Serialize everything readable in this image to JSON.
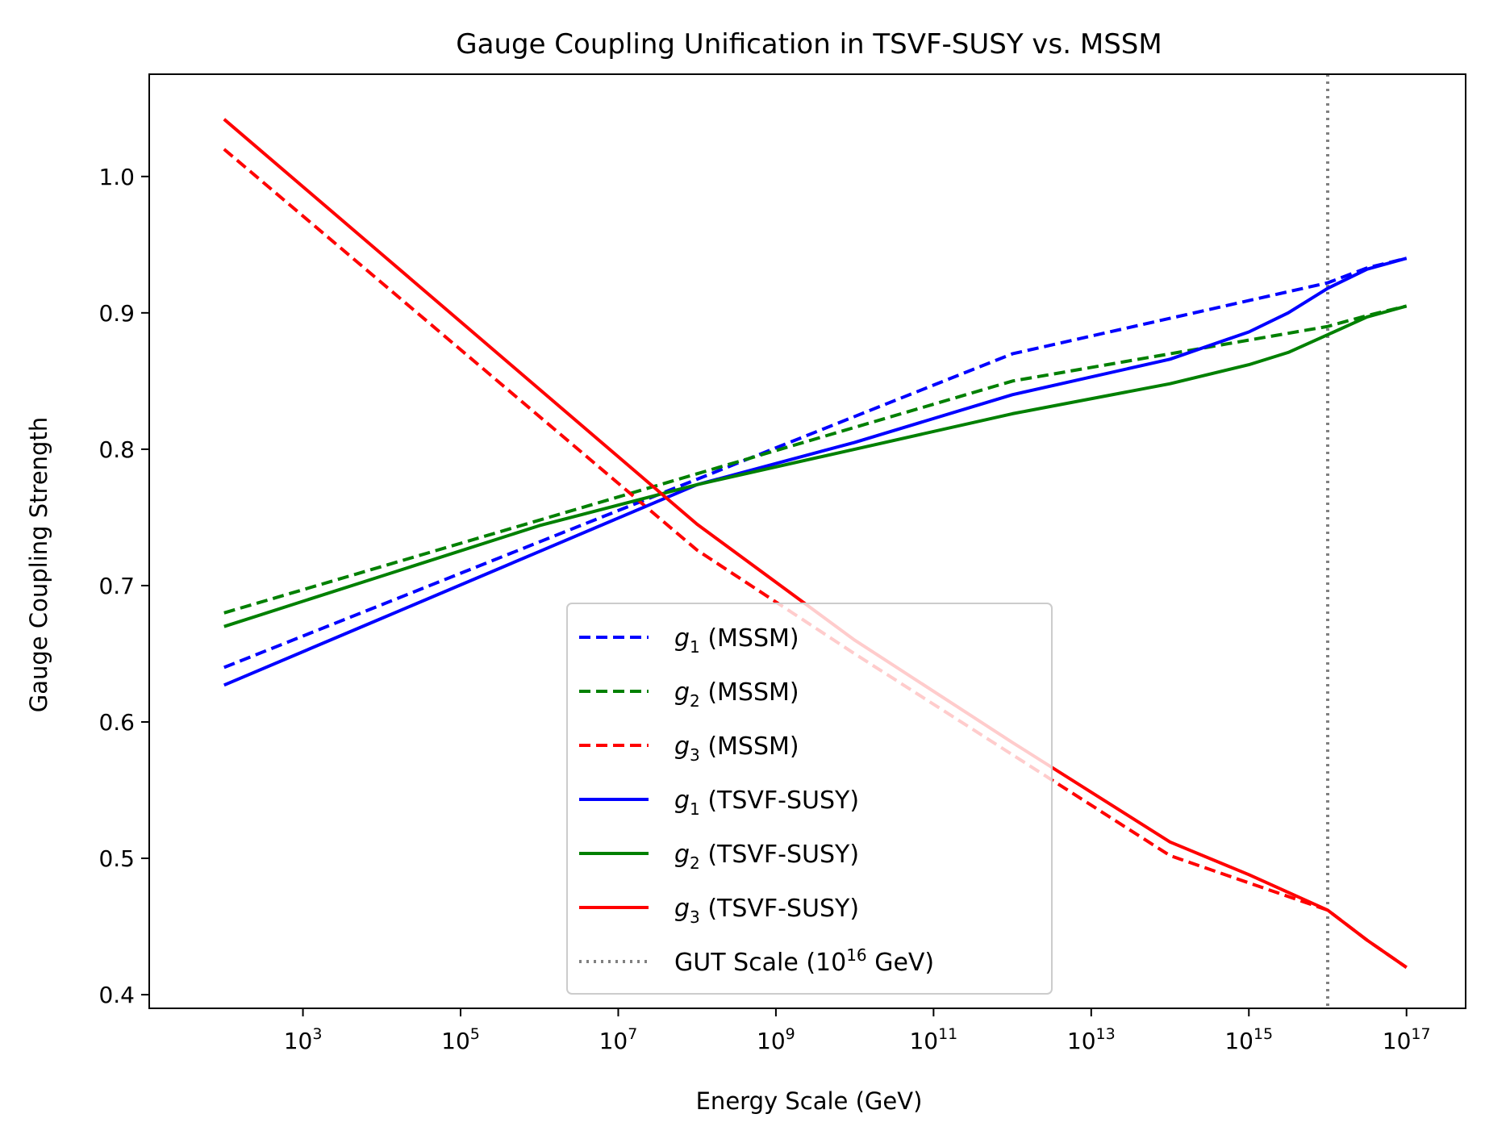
{
  "chart_data": {
    "type": "line",
    "title": "Gauge Coupling Unification in TSVF-SUSY vs. MSSM",
    "xlabel": "Energy Scale (GeV)",
    "ylabel": "Gauge Coupling Strength",
    "x_scale": "log",
    "xlim_exp": [
      1.05,
      17.75
    ],
    "ylim": [
      0.39,
      1.075
    ],
    "x_ticks": [
      {
        "exp": 3,
        "base": "10",
        "sup": "3"
      },
      {
        "exp": 5,
        "base": "10",
        "sup": "5"
      },
      {
        "exp": 7,
        "base": "10",
        "sup": "7"
      },
      {
        "exp": 9,
        "base": "10",
        "sup": "9"
      },
      {
        "exp": 11,
        "base": "10",
        "sup": "11"
      },
      {
        "exp": 13,
        "base": "10",
        "sup": "13"
      },
      {
        "exp": 15,
        "base": "10",
        "sup": "15"
      },
      {
        "exp": 17,
        "base": "10",
        "sup": "17"
      }
    ],
    "y_ticks": [
      {
        "value": 0.4,
        "label": "0.4"
      },
      {
        "value": 0.5,
        "label": "0.5"
      },
      {
        "value": 0.6,
        "label": "0.6"
      },
      {
        "value": 0.7,
        "label": "0.7"
      },
      {
        "value": 0.8,
        "label": "0.8"
      },
      {
        "value": 0.9,
        "label": "0.9"
      },
      {
        "value": 1.0,
        "label": "1.0"
      }
    ],
    "grid": false,
    "legend_position": "lower-center",
    "series": [
      {
        "name": "(MSSM)",
        "symbol": "g",
        "sub": "1",
        "color": "#0000ff",
        "style": "dashed",
        "x_exp": [
          2,
          4,
          6,
          8,
          10,
          12,
          14,
          15,
          16,
          16.5,
          17
        ],
        "y": [
          0.64,
          0.686,
          0.732,
          0.778,
          0.824,
          0.87,
          0.896,
          0.909,
          0.922,
          0.933,
          0.94
        ]
      },
      {
        "name": "(MSSM)",
        "symbol": "g",
        "sub": "2",
        "color": "#008000",
        "style": "dashed",
        "x_exp": [
          2,
          4,
          6,
          8,
          10,
          12,
          14,
          15,
          16,
          16.5,
          17
        ],
        "y": [
          0.68,
          0.714,
          0.748,
          0.782,
          0.816,
          0.85,
          0.87,
          0.88,
          0.89,
          0.898,
          0.905
        ]
      },
      {
        "name": "(MSSM)",
        "symbol": "g",
        "sub": "3",
        "color": "#ff0000",
        "style": "dashed",
        "x_exp": [
          2,
          4,
          6,
          8,
          10,
          12,
          14,
          15,
          16,
          16.5,
          17
        ],
        "y": [
          1.02,
          0.922,
          0.824,
          0.726,
          0.65,
          0.576,
          0.502,
          0.482,
          0.462,
          0.44,
          0.42
        ]
      },
      {
        "name": "(TSVF-SUSY)",
        "symbol": "g",
        "sub": "1",
        "color": "#0000ff",
        "style": "solid",
        "x_exp": [
          2,
          4,
          6,
          8,
          10,
          12,
          14,
          15,
          15.5,
          16,
          16.5,
          17
        ],
        "y": [
          0.627,
          0.676,
          0.725,
          0.774,
          0.805,
          0.84,
          0.866,
          0.886,
          0.9,
          0.918,
          0.932,
          0.94
        ]
      },
      {
        "name": "(TSVF-SUSY)",
        "symbol": "g",
        "sub": "2",
        "color": "#008000",
        "style": "solid",
        "x_exp": [
          2,
          4,
          6,
          8,
          10,
          12,
          14,
          15,
          15.5,
          16,
          16.5,
          17
        ],
        "y": [
          0.67,
          0.707,
          0.744,
          0.774,
          0.8,
          0.826,
          0.848,
          0.862,
          0.871,
          0.884,
          0.897,
          0.905
        ]
      },
      {
        "name": "(TSVF-SUSY)",
        "symbol": "g",
        "sub": "3",
        "color": "#ff0000",
        "style": "solid",
        "x_exp": [
          2,
          4,
          6,
          8,
          10,
          12,
          14,
          15,
          16,
          16.5,
          17
        ],
        "y": [
          1.042,
          0.943,
          0.844,
          0.745,
          0.66,
          0.585,
          0.512,
          0.488,
          0.462,
          0.44,
          0.42
        ]
      }
    ],
    "reference_line": {
      "label": "GUT Scale (10",
      "label_sup": "16",
      "label_suffix": " GeV)",
      "x_exp": 16,
      "color": "#808080",
      "style": "dotted"
    }
  }
}
